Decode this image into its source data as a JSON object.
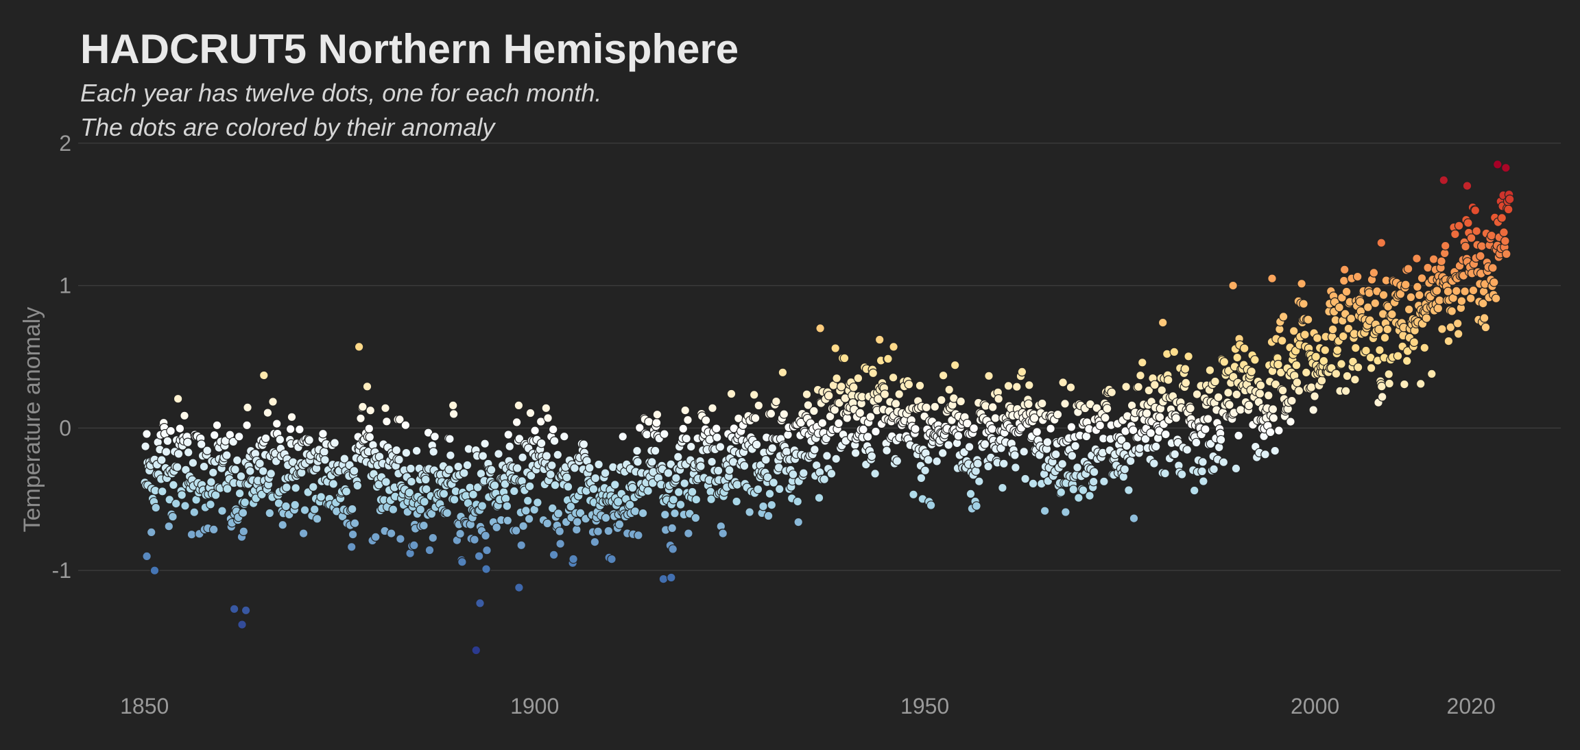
{
  "chart_data": {
    "type": "scatter",
    "title": "HADCRUT5 Northern Hemisphere",
    "subtitle_lines": [
      "Each year has twelve dots, one for each month.",
      "The dots are colored by their anomaly"
    ],
    "xlabel": "",
    "ylabel": "Temperature anomaly",
    "xlim": [
      1841.5,
      2031.5
    ],
    "ylim": [
      -1.75,
      2.1
    ],
    "x_ticks": [
      1850,
      1900,
      1950,
      2000,
      2020
    ],
    "x_tick_labels": [
      "1850",
      "1900",
      "1950",
      "2000",
      "2020"
    ],
    "y_ticks": [
      -1,
      0,
      1,
      2
    ],
    "y_tick_labels": [
      "-1",
      "0",
      "1",
      "2"
    ],
    "grid": true,
    "legend": "none",
    "color_scale": {
      "stops": [
        -1.55,
        -1.0,
        -0.5,
        0.0,
        0.5,
        1.0,
        1.5,
        1.85
      ],
      "colors": [
        "#2b3a8f",
        "#4575b4",
        "#abd9e9",
        "#ffffff",
        "#fee090",
        "#fdae61",
        "#e8542f",
        "#a50026"
      ]
    },
    "annual_mean": [
      [
        1850,
        -0.32
      ],
      [
        1851,
        -0.28
      ],
      [
        1852,
        -0.22
      ],
      [
        1853,
        -0.25
      ],
      [
        1854,
        -0.2
      ],
      [
        1855,
        -0.22
      ],
      [
        1856,
        -0.35
      ],
      [
        1857,
        -0.4
      ],
      [
        1858,
        -0.3
      ],
      [
        1859,
        -0.28
      ],
      [
        1860,
        -0.38
      ],
      [
        1861,
        -0.45
      ],
      [
        1862,
        -0.5
      ],
      [
        1863,
        -0.28
      ],
      [
        1864,
        -0.42
      ],
      [
        1865,
        -0.28
      ],
      [
        1866,
        -0.25
      ],
      [
        1867,
        -0.3
      ],
      [
        1868,
        -0.3
      ],
      [
        1869,
        -0.26
      ],
      [
        1870,
        -0.3
      ],
      [
        1871,
        -0.38
      ],
      [
        1872,
        -0.3
      ],
      [
        1873,
        -0.32
      ],
      [
        1874,
        -0.34
      ],
      [
        1875,
        -0.42
      ],
      [
        1876,
        -0.4
      ],
      [
        1877,
        -0.15
      ],
      [
        1878,
        -0.05
      ],
      [
        1879,
        -0.35
      ],
      [
        1880,
        -0.3
      ],
      [
        1881,
        -0.3
      ],
      [
        1882,
        -0.38
      ],
      [
        1883,
        -0.42
      ],
      [
        1884,
        -0.52
      ],
      [
        1885,
        -0.5
      ],
      [
        1886,
        -0.45
      ],
      [
        1887,
        -0.5
      ],
      [
        1888,
        -0.42
      ],
      [
        1889,
        -0.25
      ],
      [
        1890,
        -0.5
      ],
      [
        1891,
        -0.48
      ],
      [
        1892,
        -0.5
      ],
      [
        1893,
        -0.55
      ],
      [
        1894,
        -0.45
      ],
      [
        1895,
        -0.45
      ],
      [
        1896,
        -0.3
      ],
      [
        1897,
        -0.28
      ],
      [
        1898,
        -0.4
      ],
      [
        1899,
        -0.28
      ],
      [
        1900,
        -0.2
      ],
      [
        1901,
        -0.3
      ],
      [
        1902,
        -0.45
      ],
      [
        1903,
        -0.45
      ],
      [
        1904,
        -0.55
      ],
      [
        1905,
        -0.42
      ],
      [
        1906,
        -0.32
      ],
      [
        1907,
        -0.52
      ],
      [
        1908,
        -0.5
      ],
      [
        1909,
        -0.5
      ],
      [
        1910,
        -0.5
      ],
      [
        1911,
        -0.5
      ],
      [
        1912,
        -0.45
      ],
      [
        1913,
        -0.42
      ],
      [
        1914,
        -0.25
      ],
      [
        1915,
        -0.22
      ],
      [
        1916,
        -0.42
      ],
      [
        1917,
        -0.55
      ],
      [
        1918,
        -0.38
      ],
      [
        1919,
        -0.3
      ],
      [
        1920,
        -0.3
      ],
      [
        1921,
        -0.2
      ],
      [
        1922,
        -0.3
      ],
      [
        1923,
        -0.25
      ],
      [
        1924,
        -0.3
      ],
      [
        1925,
        -0.2
      ],
      [
        1926,
        -0.05
      ],
      [
        1927,
        -0.15
      ],
      [
        1928,
        -0.15
      ],
      [
        1929,
        -0.32
      ],
      [
        1930,
        -0.1
      ],
      [
        1931,
        -0.05
      ],
      [
        1932,
        -0.08
      ],
      [
        1933,
        -0.25
      ],
      [
        1934,
        -0.05
      ],
      [
        1935,
        -0.1
      ],
      [
        1936,
        -0.05
      ],
      [
        1937,
        0.08
      ],
      [
        1938,
        0.12
      ],
      [
        1939,
        0.05
      ],
      [
        1940,
        0.05
      ],
      [
        1941,
        0.05
      ],
      [
        1942,
        0.08
      ],
      [
        1943,
        0.12
      ],
      [
        1944,
        0.18
      ],
      [
        1945,
        0.08
      ],
      [
        1946,
        -0.02
      ],
      [
        1947,
        0.0
      ],
      [
        1948,
        -0.05
      ],
      [
        1949,
        -0.08
      ],
      [
        1950,
        -0.18
      ],
      [
        1951,
        -0.05
      ],
      [
        1952,
        0.02
      ],
      [
        1953,
        0.1
      ],
      [
        1954,
        -0.08
      ],
      [
        1955,
        -0.12
      ],
      [
        1956,
        -0.25
      ],
      [
        1957,
        0.0
      ],
      [
        1958,
        0.05
      ],
      [
        1959,
        0.02
      ],
      [
        1960,
        0.0
      ],
      [
        1961,
        0.05
      ],
      [
        1962,
        0.02
      ],
      [
        1963,
        0.05
      ],
      [
        1964,
        -0.2
      ],
      [
        1965,
        -0.15
      ],
      [
        1966,
        -0.1
      ],
      [
        1967,
        -0.12
      ],
      [
        1968,
        -0.15
      ],
      [
        1969,
        -0.05
      ],
      [
        1970,
        -0.05
      ],
      [
        1971,
        -0.2
      ],
      [
        1972,
        -0.15
      ],
      [
        1973,
        0.05
      ],
      [
        1974,
        -0.2
      ],
      [
        1975,
        -0.15
      ],
      [
        1976,
        -0.25
      ],
      [
        1977,
        0.02
      ],
      [
        1978,
        -0.05
      ],
      [
        1979,
        0.0
      ],
      [
        1980,
        0.05
      ],
      [
        1981,
        0.15
      ],
      [
        1982,
        -0.02
      ],
      [
        1983,
        0.15
      ],
      [
        1984,
        -0.05
      ],
      [
        1985,
        -0.05
      ],
      [
        1986,
        0.02
      ],
      [
        1987,
        0.1
      ],
      [
        1988,
        0.2
      ],
      [
        1989,
        0.15
      ],
      [
        1990,
        0.35
      ],
      [
        1991,
        0.3
      ],
      [
        1992,
        0.05
      ],
      [
        1993,
        0.1
      ],
      [
        1994,
        0.28
      ],
      [
        1995,
        0.4
      ],
      [
        1996,
        0.2
      ],
      [
        1997,
        0.45
      ],
      [
        1998,
        0.68
      ],
      [
        1999,
        0.45
      ],
      [
        2000,
        0.42
      ],
      [
        2001,
        0.6
      ],
      [
        2002,
        0.7
      ],
      [
        2003,
        0.7
      ],
      [
        2004,
        0.62
      ],
      [
        2005,
        0.78
      ],
      [
        2006,
        0.75
      ],
      [
        2007,
        0.8
      ],
      [
        2008,
        0.6
      ],
      [
        2009,
        0.7
      ],
      [
        2010,
        0.85
      ],
      [
        2011,
        0.68
      ],
      [
        2012,
        0.72
      ],
      [
        2013,
        0.75
      ],
      [
        2014,
        0.82
      ],
      [
        2015,
        1.0
      ],
      [
        2016,
        1.1
      ],
      [
        2017,
        1.05
      ],
      [
        2018,
        0.98
      ],
      [
        2019,
        1.12
      ],
      [
        2020,
        1.2
      ],
      [
        2021,
        1.05
      ],
      [
        2022,
        1.05
      ],
      [
        2023,
        1.35
      ],
      [
        2024,
        1.55
      ]
    ],
    "month_spread": 0.2,
    "extreme_points": [
      [
        1850.3,
        -0.9
      ],
      [
        1851.3,
        -1.0
      ],
      [
        1861.5,
        -1.27
      ],
      [
        1862.5,
        -1.38
      ],
      [
        1863.0,
        -1.28
      ],
      [
        1892.5,
        -1.56
      ],
      [
        1893.0,
        -1.23
      ],
      [
        1898.0,
        -1.12
      ],
      [
        1916.5,
        -1.06
      ],
      [
        1917.5,
        -1.05
      ],
      [
        1877.5,
        0.57
      ],
      [
        1865.3,
        0.37
      ],
      [
        1946.0,
        0.57
      ],
      [
        1936.6,
        0.7
      ],
      [
        1980.5,
        0.74
      ],
      [
        1989.5,
        1.0
      ],
      [
        1994.5,
        1.05
      ],
      [
        2008.5,
        1.3
      ],
      [
        2016.5,
        1.74
      ],
      [
        2019.5,
        1.7
      ],
      [
        2023.4,
        1.85
      ]
    ]
  }
}
